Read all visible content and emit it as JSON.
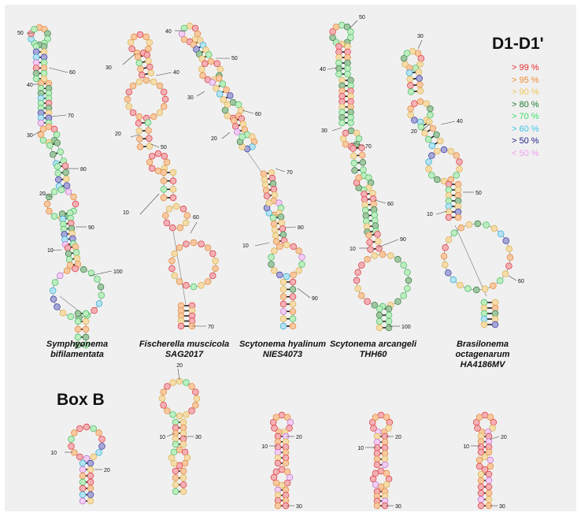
{
  "panel_title": "D1-D1'",
  "box_title": "Box B",
  "legend": [
    {
      "label": "> 99 %",
      "color": "#e8282b"
    },
    {
      "label": "> 95 %",
      "color": "#f28a30"
    },
    {
      "label": "> 90 %",
      "color": "#f3c45a"
    },
    {
      "label": "> 80 %",
      "color": "#1f7a2e"
    },
    {
      "label": "> 70 %",
      "color": "#3ce06a"
    },
    {
      "label": "> 60 %",
      "color": "#38c6e8"
    },
    {
      "label": "> 50 %",
      "color": "#23238e"
    },
    {
      "label": "< 50 %",
      "color": "#ee9ef0"
    }
  ],
  "species": [
    {
      "genus": "Symphyonema",
      "strain": "bifilamentata"
    },
    {
      "genus": "Fischerella muscicola",
      "strain": "SAG2017"
    },
    {
      "genus": "Scytonema hyalinum",
      "strain": "NIES4073"
    },
    {
      "genus": "Scytonema arcangeli",
      "strain": "THH60"
    },
    {
      "genus": "Brasilonema octagenarum",
      "strain": "HA4186MV"
    }
  ],
  "position_labels": {
    "s1": [
      "50",
      "60",
      "40",
      "70",
      "30",
      "80",
      "20",
      "90",
      "10",
      "100"
    ],
    "s2": [
      "30",
      "40",
      "50",
      "20",
      "10",
      "60",
      "70"
    ],
    "s3": [
      "40",
      "50",
      "30",
      "60",
      "20",
      "70",
      "80",
      "10",
      "90"
    ],
    "s4": [
      "50",
      "40",
      "70",
      "30",
      "60",
      "90",
      "10",
      "100"
    ],
    "s5": [
      "30",
      "20",
      "40",
      "50",
      "10",
      "60"
    ],
    "b1": [
      "10",
      "20"
    ],
    "b2": [
      "20",
      "10",
      "30"
    ],
    "b3": [
      "10",
      "20",
      "30"
    ],
    "b4": [
      "10",
      "20",
      "30"
    ],
    "b5": [
      "10",
      "20",
      "30"
    ]
  }
}
